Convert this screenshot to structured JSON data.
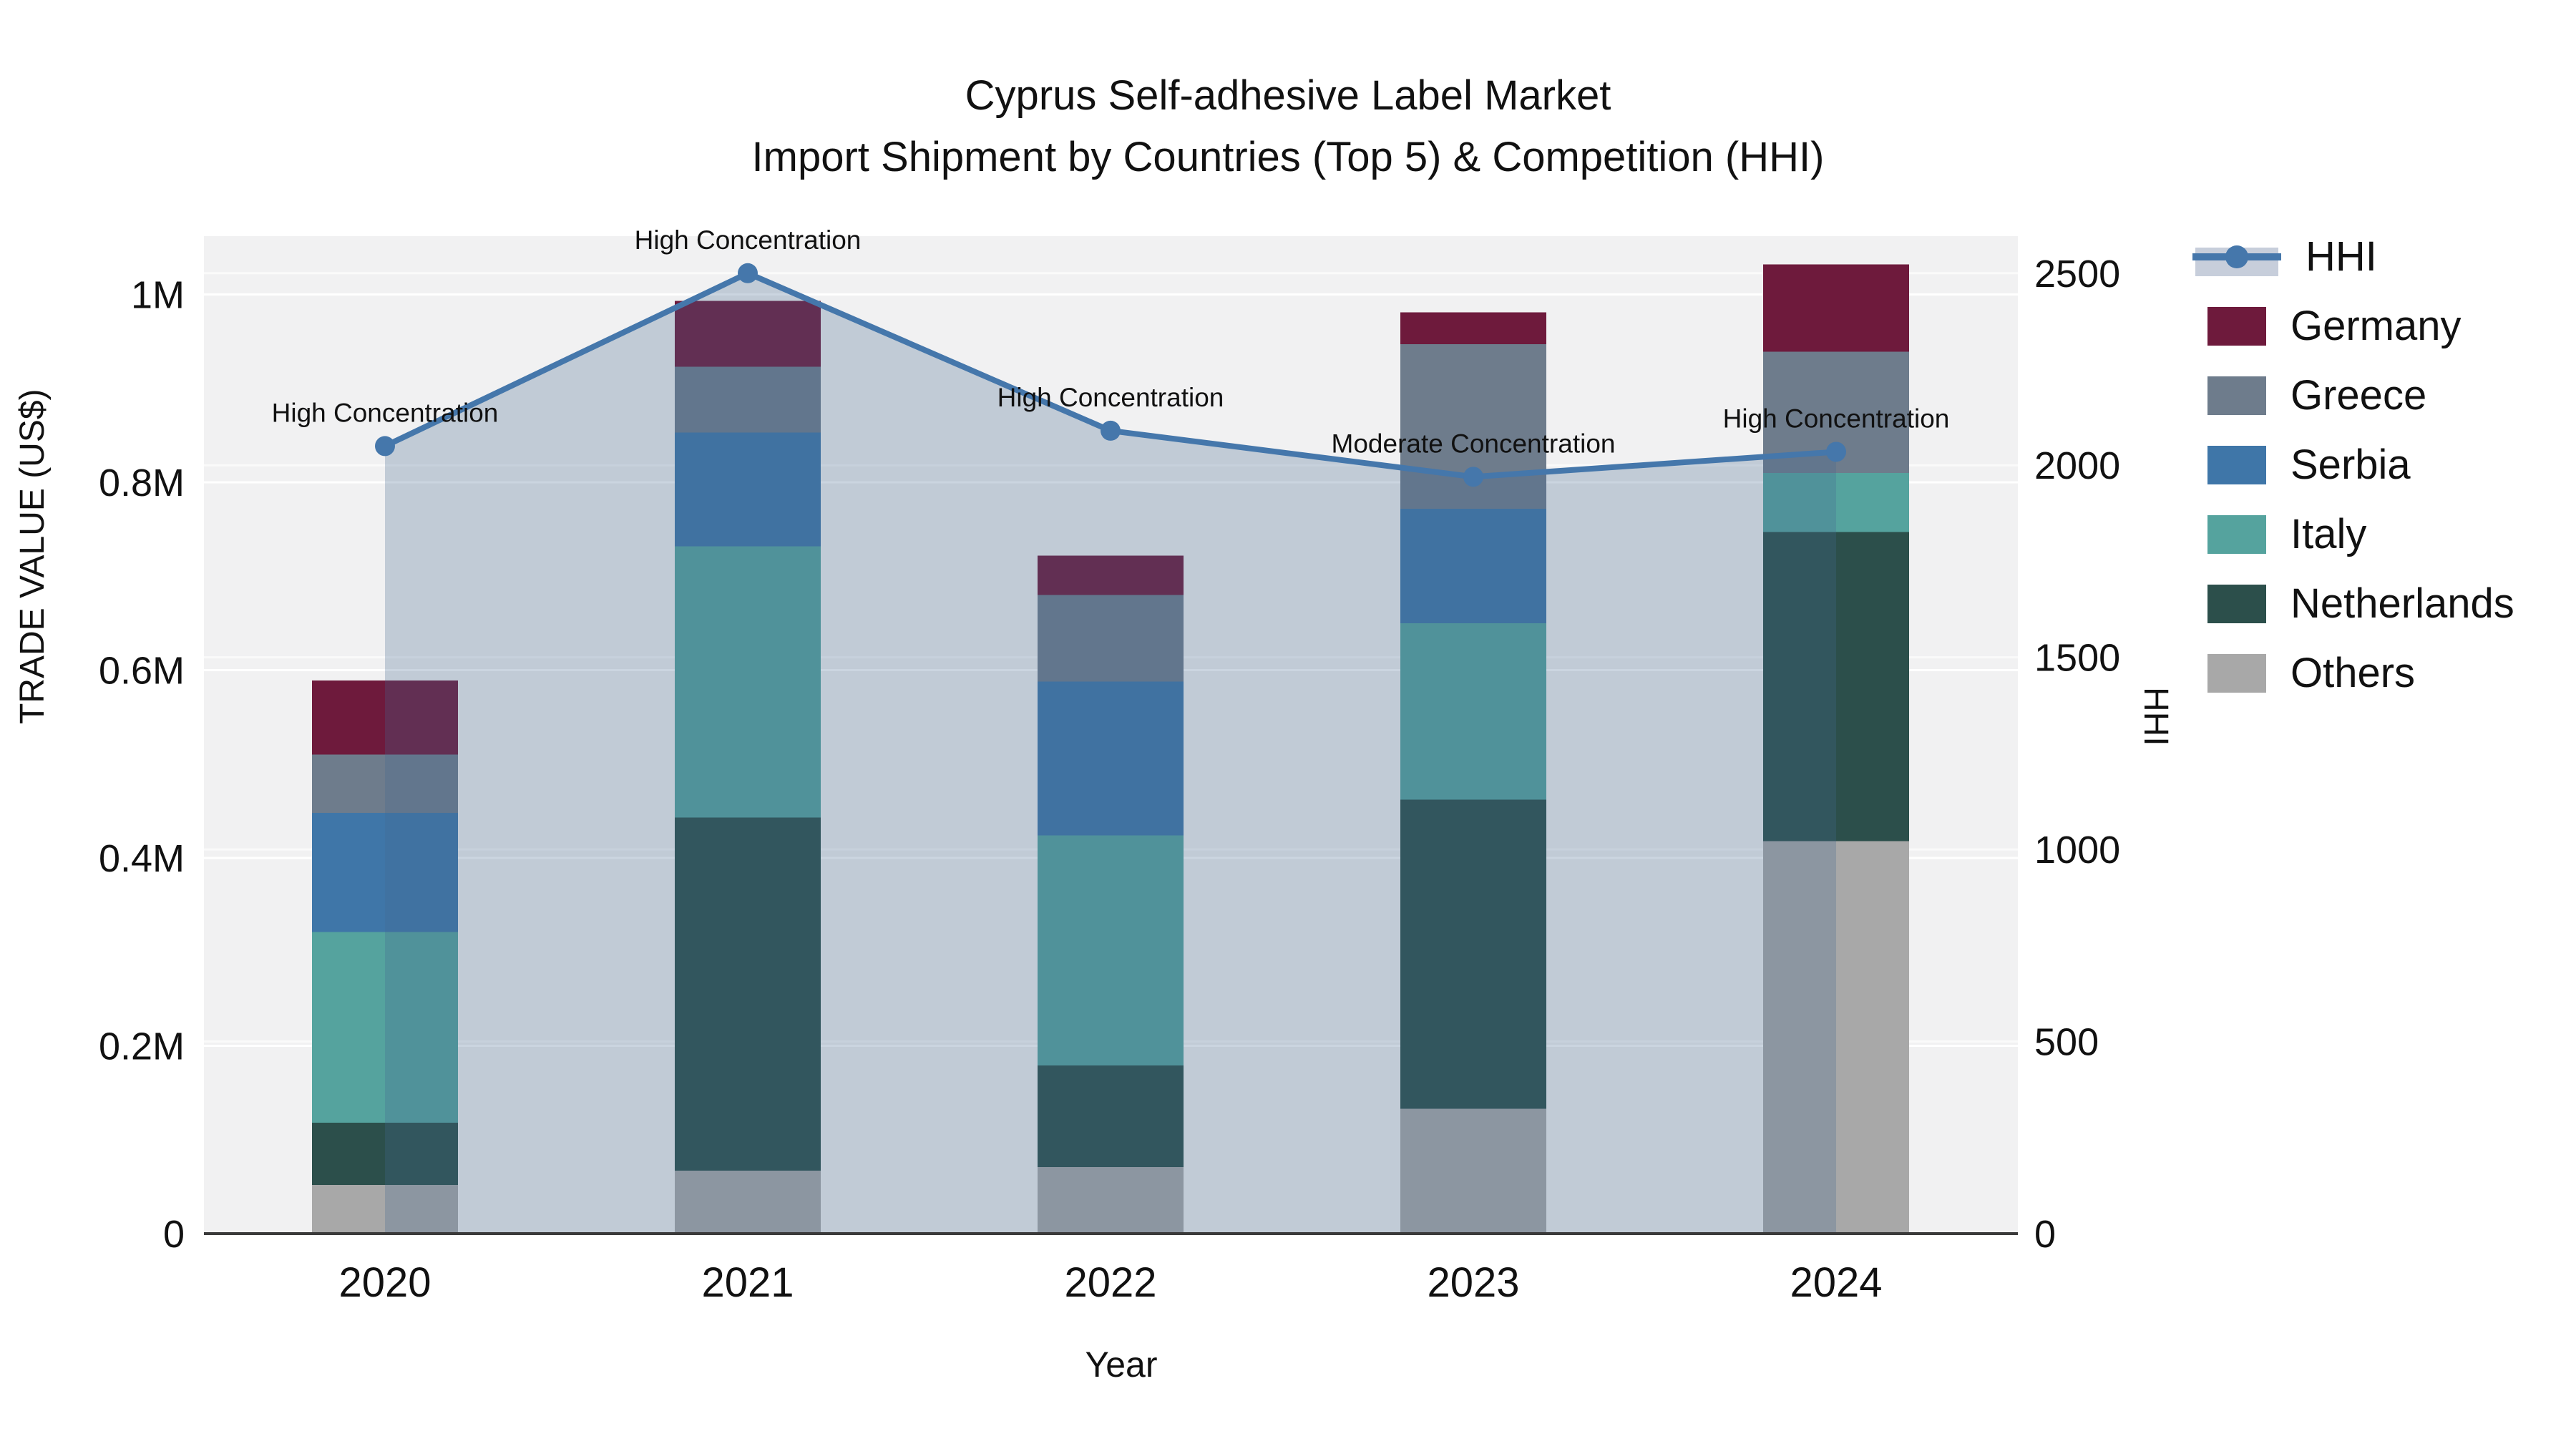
{
  "title": {
    "line1": "Cyprus Self-adhesive Label Market",
    "line2": "Import Shipment by Countries (Top 5) & Competition (HHI)"
  },
  "axes": {
    "x": {
      "title": "Year",
      "ticks": [
        "2020",
        "2021",
        "2022",
        "2023",
        "2024"
      ]
    },
    "left": {
      "title": "TRADE VALUE (US$)",
      "ticks": [
        "0",
        "0.2M",
        "0.4M",
        "0.6M",
        "0.8M",
        "1M"
      ],
      "tick_values": [
        0,
        200000,
        400000,
        600000,
        800000,
        1000000
      ]
    },
    "right": {
      "title": "HHI",
      "ticks": [
        "0",
        "500",
        "1000",
        "1500",
        "2000",
        "2500"
      ],
      "tick_values": [
        0,
        500,
        1000,
        1500,
        2000,
        2500
      ]
    }
  },
  "legend": {
    "items": [
      {
        "label": "HHI",
        "type": "line",
        "color": "#4577ab"
      },
      {
        "label": "Germany",
        "type": "swatch",
        "color": "#6e1a3c"
      },
      {
        "label": "Greece",
        "type": "swatch",
        "color": "#6e7c8c"
      },
      {
        "label": "Serbia",
        "type": "swatch",
        "color": "#3f76a8"
      },
      {
        "label": "Italy",
        "type": "swatch",
        "color": "#55a39e"
      },
      {
        "label": "Netherlands",
        "type": "swatch",
        "color": "#2c4f4b"
      },
      {
        "label": "Others",
        "type": "swatch",
        "color": "#a8a8a8"
      }
    ]
  },
  "chart_data": {
    "type": "bar",
    "subtype": "stacked-bar-with-line",
    "title": "Cyprus Self-adhesive Label Market — Import Shipment by Countries (Top 5) & Competition (HHI)",
    "xlabel": "Year",
    "ylabel_left": "TRADE VALUE (US$)",
    "ylabel_right": "HHI",
    "ylim_left": [
      0,
      1050000
    ],
    "ylim_right": [
      0,
      2525
    ],
    "grid": true,
    "legend_position": "right",
    "categories": [
      "2020",
      "2021",
      "2022",
      "2023",
      "2024"
    ],
    "stack_order_bottom_to_top": [
      "Others",
      "Netherlands",
      "Italy",
      "Serbia",
      "Greece",
      "Germany"
    ],
    "series": [
      {
        "name": "Germany",
        "color": "#6e1a3c",
        "values": [
          79000,
          70000,
          42000,
          34000,
          93000
        ]
      },
      {
        "name": "Greece",
        "color": "#6e7c8c",
        "values": [
          62000,
          70000,
          92000,
          175000,
          129000
        ]
      },
      {
        "name": "Serbia",
        "color": "#3f76a8",
        "values": [
          127000,
          121000,
          164000,
          122000,
          0
        ]
      },
      {
        "name": "Italy",
        "color": "#55a39e",
        "values": [
          203000,
          289000,
          245000,
          188000,
          63000
        ]
      },
      {
        "name": "Netherlands",
        "color": "#2c4f4b",
        "values": [
          66000,
          376000,
          108000,
          329000,
          329000
        ]
      },
      {
        "name": "Others",
        "color": "#a8a8a8",
        "values": [
          52000,
          67000,
          71000,
          133000,
          418000
        ]
      }
    ],
    "line_series": {
      "name": "HHI",
      "color": "#4577ab",
      "fill_color": "rgba(70,105,145,0.28)",
      "values": [
        2050,
        2500,
        2090,
        1970,
        2035
      ]
    },
    "annotations": [
      {
        "category": "2020",
        "text": "High Concentration"
      },
      {
        "category": "2021",
        "text": "High Concentration"
      },
      {
        "category": "2022",
        "text": "High Concentration"
      },
      {
        "category": "2023",
        "text": "Moderate Concentration"
      },
      {
        "category": "2024",
        "text": "High Concentration"
      }
    ]
  }
}
